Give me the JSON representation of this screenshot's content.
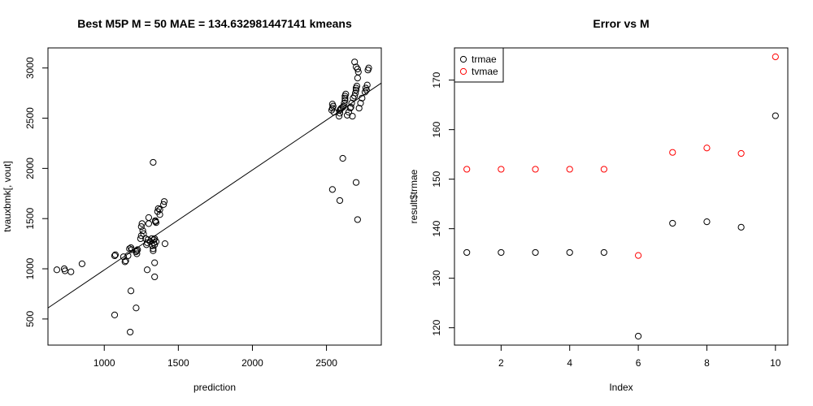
{
  "chart_data": [
    {
      "type": "scatter",
      "title": "Best M5P M = 50 MAE = 134.632981447141 kmeans",
      "xlabel": "prediction",
      "ylabel": "tvauxbmk[, vout]",
      "xlim": [
        620,
        2870
      ],
      "ylim": [
        240,
        3200
      ],
      "xticks": [
        1000,
        1500,
        2000,
        2500
      ],
      "yticks": [
        500,
        1000,
        1500,
        2000,
        2500,
        3000
      ],
      "point_color": "#000000",
      "fit_line": {
        "x": [
          620,
          2870
        ],
        "y": [
          610,
          2850
        ]
      },
      "x": [
        680,
        730,
        735,
        775,
        850,
        1070,
        1075,
        1130,
        1140,
        1145,
        1160,
        1170,
        1180,
        1185,
        1215,
        1220,
        1220,
        1225,
        1245,
        1250,
        1250,
        1255,
        1260,
        1265,
        1280,
        1285,
        1290,
        1295,
        1300,
        1300,
        1310,
        1320,
        1325,
        1330,
        1330,
        1335,
        1335,
        1340,
        1340,
        1345,
        1345,
        1350,
        1350,
        1360,
        1365,
        1375,
        1375,
        1400,
        1405,
        1410,
        1330,
        1290,
        1340,
        1340,
        1180,
        1175,
        1215,
        1070,
        2535,
        2540,
        2540,
        2545,
        2550,
        2585,
        2590,
        2590,
        2595,
        2600,
        2610,
        2615,
        2620,
        2625,
        2625,
        2625,
        2630,
        2640,
        2650,
        2660,
        2665,
        2670,
        2680,
        2690,
        2695,
        2700,
        2700,
        2705,
        2710,
        2720,
        2730,
        2740,
        2760,
        2765,
        2770,
        2775,
        2780,
        2785,
        2690,
        2700,
        2710,
        2715,
        2675,
        2590,
        2610,
        2540,
        2700,
        2710
      ],
      "y": [
        990,
        1000,
        980,
        970,
        1050,
        1130,
        1140,
        1120,
        1070,
        1080,
        1130,
        1200,
        1210,
        1190,
        1170,
        1150,
        1180,
        1190,
        1300,
        1330,
        1420,
        1450,
        1380,
        1350,
        1300,
        1240,
        1260,
        1290,
        1450,
        1510,
        1270,
        1300,
        1230,
        1180,
        1200,
        1260,
        1290,
        1300,
        1240,
        1480,
        1470,
        1460,
        1270,
        1570,
        1600,
        1590,
        1540,
        1640,
        1670,
        1250,
        2060,
        990,
        1060,
        920,
        780,
        370,
        610,
        540,
        2580,
        2600,
        2640,
        2620,
        2560,
        2520,
        2550,
        2580,
        2590,
        2600,
        2610,
        2620,
        2650,
        2680,
        2700,
        2720,
        2740,
        2530,
        2560,
        2600,
        2610,
        2650,
        2700,
        2720,
        2750,
        2780,
        2800,
        2820,
        2900,
        2600,
        2650,
        2700,
        2760,
        2800,
        2780,
        2830,
        2980,
        3000,
        3060,
        3010,
        2990,
        2960,
        2520,
        1680,
        2100,
        1790,
        1860,
        1490
      ],
      "plot_area": "left"
    },
    {
      "type": "scatter",
      "title": "Error vs M",
      "xlabel": "Index",
      "ylabel": "result$trmae",
      "xlim": [
        0.64,
        10.36
      ],
      "ylim": [
        116.5,
        176.5
      ],
      "xticks": [
        2,
        4,
        6,
        8,
        10
      ],
      "yticks": [
        120,
        130,
        140,
        150,
        160,
        170
      ],
      "legend_position": "top-left",
      "series": [
        {
          "name": "trmae",
          "color": "#000000",
          "x": [
            1,
            2,
            3,
            4,
            5,
            6,
            7,
            8,
            9,
            10
          ],
          "values": [
            135.2,
            135.2,
            135.2,
            135.2,
            135.2,
            118.3,
            141.1,
            141.4,
            140.3,
            162.8
          ]
        },
        {
          "name": "tvmae",
          "color": "#ff0000",
          "x": [
            1,
            2,
            3,
            4,
            5,
            6,
            7,
            8,
            9,
            10
          ],
          "values": [
            152.0,
            152.0,
            152.0,
            152.0,
            152.0,
            134.6,
            155.4,
            156.3,
            155.2,
            174.7
          ]
        }
      ]
    }
  ]
}
